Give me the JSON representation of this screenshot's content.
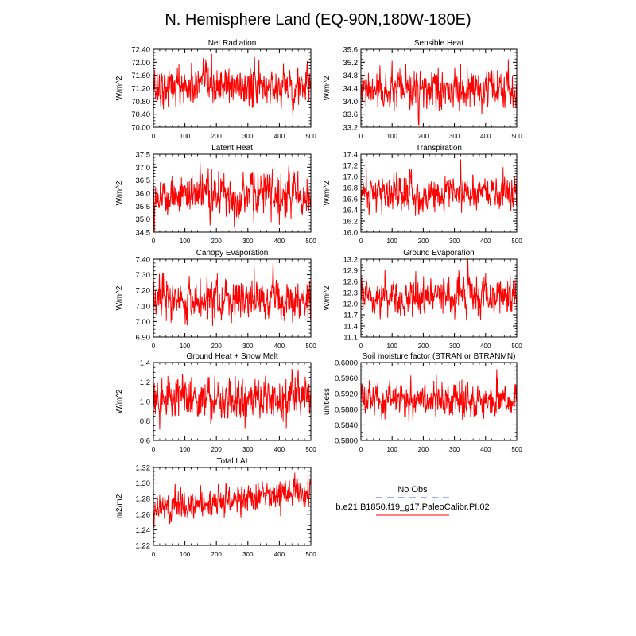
{
  "figure": {
    "title": "N. Hemisphere Land (EQ-90N,180W-180E)"
  },
  "legend": {
    "obs_label": "No Obs",
    "model_label": "b.e21.B1850.f19_g17.PaleoCalibr.PI.02",
    "obs_color": "#4455ff",
    "model_color": "#ff0000"
  },
  "colors": {
    "line": "#ff0000"
  },
  "chart_data": [
    {
      "type": "line",
      "title": "Net Radiation",
      "ylabel": "W/m^2",
      "xlim": [
        0,
        500
      ],
      "ylim": [
        70.0,
        72.4
      ],
      "xticks": [
        0,
        100,
        200,
        300,
        400,
        500
      ],
      "yticks": [
        "70.00",
        "70.40",
        "70.80",
        "71.20",
        "71.60",
        "72.00",
        "72.40"
      ],
      "series": [
        {
          "mean": 71.25,
          "noise": 0.32,
          "trend": [
            0,
            0
          ],
          "x": [
            0,
            500
          ],
          "length": 500
        }
      ]
    },
    {
      "type": "line",
      "title": "Sensible Heat",
      "ylabel": "W/m^2",
      "xlim": [
        0,
        500
      ],
      "ylim": [
        33.2,
        35.6
      ],
      "xticks": [
        0,
        100,
        200,
        300,
        400,
        500
      ],
      "yticks": [
        "33.2",
        "33.6",
        "34.0",
        "34.4",
        "34.8",
        "35.2",
        "35.6"
      ],
      "series": [
        {
          "mean": 34.3,
          "noise": 0.3,
          "trend": [
            0,
            0
          ],
          "x": [
            0,
            500
          ],
          "length": 500
        }
      ]
    },
    {
      "type": "line",
      "title": "Latent Heat",
      "ylabel": "W/m^2",
      "xlim": [
        0,
        500
      ],
      "ylim": [
        34.5,
        37.5
      ],
      "xticks": [
        0,
        100,
        200,
        300,
        400,
        500
      ],
      "yticks": [
        "34.5",
        "35.0",
        "35.5",
        "36.0",
        "36.5",
        "37.0",
        "37.5"
      ],
      "series": [
        {
          "mean": 35.95,
          "noise": 0.42,
          "trend": [
            0,
            0
          ],
          "x": [
            0,
            500
          ],
          "length": 500
        }
      ]
    },
    {
      "type": "line",
      "title": "Transpiration",
      "ylabel": "W/m^2",
      "xlim": [
        0,
        500
      ],
      "ylim": [
        16.0,
        17.4
      ],
      "xticks": [
        0,
        100,
        200,
        300,
        400,
        500
      ],
      "yticks": [
        "16.0",
        "16.2",
        "16.4",
        "16.6",
        "16.8",
        "17.0",
        "17.2",
        "17.4"
      ],
      "series": [
        {
          "mean": 16.7,
          "noise": 0.17,
          "trend": [
            0,
            0
          ],
          "x": [
            0,
            500
          ],
          "length": 500
        }
      ]
    },
    {
      "type": "line",
      "title": "Canopy Evaporation",
      "ylabel": "W/m^2",
      "xlim": [
        0,
        500
      ],
      "ylim": [
        6.9,
        7.4
      ],
      "xticks": [
        0,
        100,
        200,
        300,
        400,
        500
      ],
      "yticks": [
        "6.90",
        "7.00",
        "7.10",
        "7.20",
        "7.30",
        "7.40"
      ],
      "series": [
        {
          "mean": 7.13,
          "noise": 0.07,
          "trend": [
            0,
            0
          ],
          "x": [
            0,
            500
          ],
          "length": 500
        }
      ]
    },
    {
      "type": "line",
      "title": "Ground Evaporation",
      "ylabel": "W/m^2",
      "xlim": [
        0,
        500
      ],
      "ylim": [
        11.1,
        13.2
      ],
      "xticks": [
        0,
        100,
        200,
        300,
        400,
        500
      ],
      "yticks": [
        "11.1",
        "11.4",
        "11.7",
        "12.0",
        "12.3",
        "12.6",
        "12.9",
        "13.2"
      ],
      "series": [
        {
          "mean": 12.2,
          "noise": 0.27,
          "trend": [
            0,
            0
          ],
          "x": [
            0,
            500
          ],
          "length": 500
        }
      ]
    },
    {
      "type": "line",
      "title": "Ground Heat + Snow Melt",
      "ylabel": "W/m^2",
      "xlim": [
        0,
        500
      ],
      "ylim": [
        0.6,
        1.4
      ],
      "xticks": [
        0,
        100,
        200,
        300,
        400,
        500
      ],
      "yticks": [
        "0.6",
        "0.8",
        "1.0",
        "1.2",
        "1.4"
      ],
      "series": [
        {
          "mean": 1.03,
          "noise": 0.12,
          "trend": [
            0,
            0
          ],
          "x": [
            0,
            500
          ],
          "length": 500
        }
      ]
    },
    {
      "type": "line",
      "title": "Soil moisture factor (BTRAN or BTRANMN)",
      "ylabel": "unitless",
      "xlim": [
        0,
        500
      ],
      "ylim": [
        0.58,
        0.6
      ],
      "xticks": [
        0,
        100,
        200,
        300,
        400,
        500
      ],
      "yticks": [
        "0.5800",
        "0.5840",
        "0.5880",
        "0.5920",
        "0.5960",
        "0.6000"
      ],
      "series": [
        {
          "mean": 0.5905,
          "noise": 0.0022,
          "trend": [
            0,
            0
          ],
          "x": [
            0,
            500
          ],
          "length": 500
        }
      ]
    },
    {
      "type": "line",
      "title": "Total LAI",
      "ylabel": "m2/m2",
      "xlim": [
        0,
        500
      ],
      "ylim": [
        1.22,
        1.32
      ],
      "xticks": [
        0,
        100,
        200,
        300,
        400,
        500
      ],
      "yticks": [
        "1.22",
        "1.24",
        "1.26",
        "1.28",
        "1.30",
        "1.32"
      ],
      "series": [
        {
          "mean": 1.275,
          "noise": 0.01,
          "trend": [
            -0.008,
            0.012
          ],
          "x": [
            0,
            500
          ],
          "length": 500
        }
      ]
    }
  ]
}
